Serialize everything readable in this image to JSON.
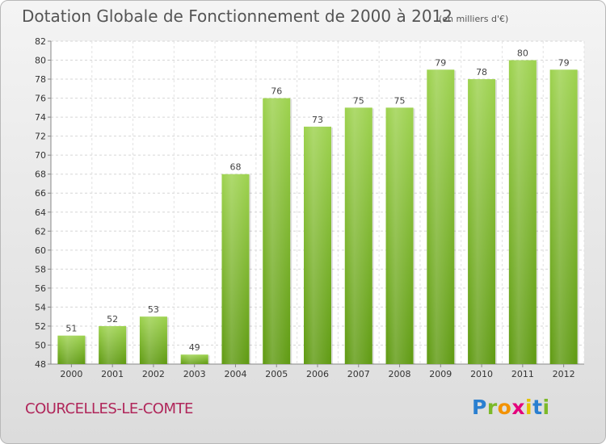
{
  "title": "Dotation Globale de Fonctionnement de 2000 à 2012",
  "unit_note": "(en milliers d'€)",
  "commune": "COURCELLES-LE-COMTE",
  "brand": {
    "letters": [
      "P",
      "r",
      "o",
      "x",
      "i",
      "t",
      "i"
    ],
    "colors": [
      "#2a7fd0",
      "#7cb928",
      "#f39200",
      "#e4007c",
      "#e4c200",
      "#2a7fd0",
      "#7cb928"
    ]
  },
  "chart_data": {
    "type": "bar",
    "categories": [
      "2000",
      "2001",
      "2002",
      "2003",
      "2004",
      "2005",
      "2006",
      "2007",
      "2008",
      "2009",
      "2010",
      "2011",
      "2012"
    ],
    "values": [
      51,
      52,
      53,
      49,
      68,
      76,
      73,
      75,
      75,
      79,
      78,
      80,
      79
    ],
    "ylim": [
      48,
      82
    ],
    "yticks": [
      48,
      50,
      52,
      54,
      56,
      58,
      60,
      62,
      64,
      66,
      68,
      70,
      72,
      74,
      76,
      78,
      80,
      82
    ],
    "grid": true,
    "bar_color": "#8cc63f"
  }
}
